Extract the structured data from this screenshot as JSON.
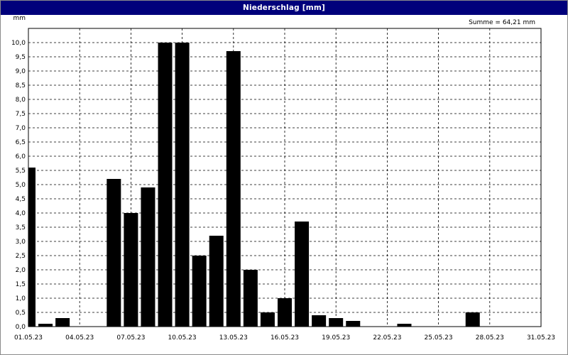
{
  "window": {
    "title": "Niederschlag [mm]"
  },
  "chart_data": {
    "type": "bar",
    "title": "Niederschlag [mm]",
    "ylabel": "mm",
    "annotation": "Summe = 64,21 mm",
    "ylim": [
      0,
      10.5
    ],
    "yticks": [
      "0,0",
      "0,5",
      "1,0",
      "1,5",
      "2,0",
      "2,5",
      "3,0",
      "3,5",
      "4,0",
      "4,5",
      "5,0",
      "5,5",
      "6,0",
      "6,5",
      "7,0",
      "7,5",
      "8,0",
      "8,5",
      "9,0",
      "9,5",
      "10,0"
    ],
    "xtick_labels": [
      "01.05.23",
      "04.05.23",
      "07.05.23",
      "10.05.23",
      "13.05.23",
      "16.05.23",
      "19.05.23",
      "22.05.23",
      "25.05.23",
      "28.05.23",
      "31.05.23"
    ],
    "categories": [
      "01.05.23",
      "02.05.23",
      "03.05.23",
      "04.05.23",
      "05.05.23",
      "06.05.23",
      "07.05.23",
      "08.05.23",
      "09.05.23",
      "10.05.23",
      "11.05.23",
      "12.05.23",
      "13.05.23",
      "14.05.23",
      "15.05.23",
      "16.05.23",
      "17.05.23",
      "18.05.23",
      "19.05.23",
      "20.05.23",
      "21.05.23",
      "22.05.23",
      "23.05.23",
      "24.05.23",
      "25.05.23",
      "26.05.23",
      "27.05.23",
      "28.05.23",
      "29.05.23",
      "30.05.23",
      "31.05.23"
    ],
    "values": [
      5.6,
      0.1,
      0.3,
      0,
      0,
      5.2,
      4.0,
      4.9,
      10.0,
      10.0,
      2.5,
      3.2,
      9.7,
      2.0,
      0.5,
      1.0,
      3.7,
      0.4,
      0.3,
      0.2,
      0,
      0,
      0.1,
      0,
      0,
      0,
      0.5,
      0,
      0,
      0,
      0
    ],
    "grid": true,
    "bar_color": "#000000",
    "title_bar_color": "#00007b"
  }
}
